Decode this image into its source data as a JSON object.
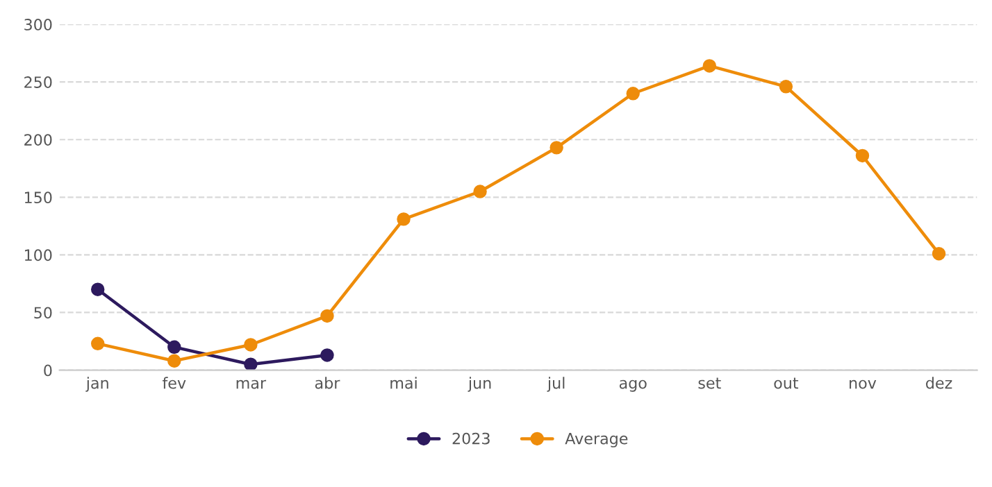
{
  "chart_data": {
    "type": "line",
    "categories": [
      "jan",
      "fev",
      "mar",
      "abr",
      "mai",
      "jun",
      "jul",
      "ago",
      "set",
      "out",
      "nov",
      "dez"
    ],
    "series": [
      {
        "name": "2023",
        "color": "#2d1a5e",
        "values": [
          70,
          20,
          5,
          13,
          null,
          null,
          null,
          null,
          null,
          null,
          null,
          null
        ]
      },
      {
        "name": "Average",
        "color": "#ee8c0a",
        "values": [
          23,
          8,
          22,
          47,
          131,
          155,
          193,
          240,
          264,
          246,
          186,
          101
        ]
      }
    ],
    "ylim": [
      0,
      300
    ],
    "yticks": [
      0,
      50,
      100,
      150,
      200,
      250,
      300
    ],
    "grid": "y",
    "legend": "bottom",
    "marker": "circle",
    "line_style": "solid"
  }
}
